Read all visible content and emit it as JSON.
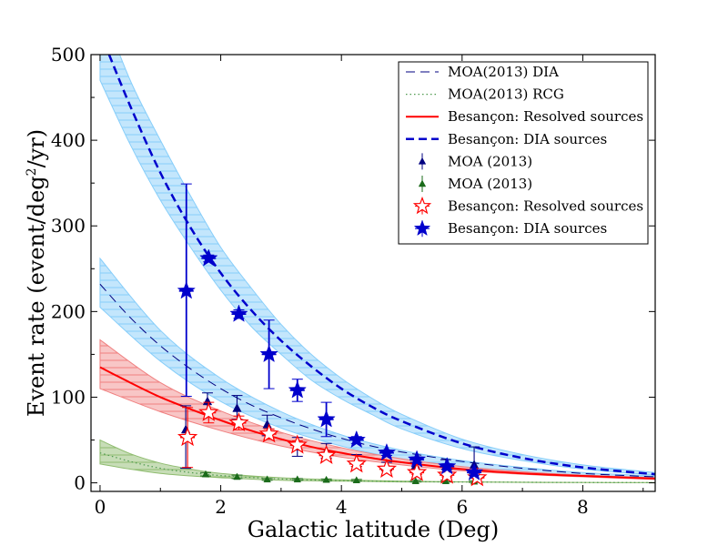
{
  "chart_data": {
    "type": "line",
    "xlabel": "Galactic latitude (Deg)",
    "ylabel_main": "Event rate (event/deg",
    "ylabel_sup": "2",
    "ylabel_end": "/yr)",
    "xlim": [
      -0.15,
      9.2
    ],
    "ylim": [
      -10,
      500
    ],
    "xticks": [
      0,
      2,
      4,
      6,
      8
    ],
    "yticks": [
      0,
      100,
      200,
      300,
      400,
      500
    ],
    "xtick_labels": [
      "0",
      "2",
      "4",
      "6",
      "8"
    ],
    "ytick_labels": [
      "0",
      "100",
      "200",
      "300",
      "400",
      "500"
    ],
    "legend_position": "top-right",
    "colors": {
      "blue_dark": "#0000cc",
      "navy": "#000080",
      "red": "#ff0000",
      "green_dark": "#1a6b1a",
      "green_dotted": "#4e9a4e",
      "band_blue": "#87cefa",
      "band_red": "#f08080",
      "band_green": "#8fbc6f"
    },
    "bands": [
      {
        "name": "moa_dia_band",
        "color": "#87cefa",
        "x": [
          0.0,
          1.0,
          2.0,
          3.0,
          4.0,
          5.0,
          6.0,
          7.0,
          8.0,
          9.2
        ],
        "lower": [
          205,
          142,
          95,
          64,
          43,
          28,
          19,
          13,
          9,
          6
        ],
        "upper": [
          262,
          178,
          122,
          83,
          56,
          38,
          26,
          18,
          12,
          8
        ]
      },
      {
        "name": "besancon_dia_band",
        "color": "#87cefa",
        "x": [
          0.0,
          0.5,
          1.0,
          1.5,
          2.0,
          2.5,
          3.0,
          3.5,
          4.0,
          4.5,
          5.0,
          6.0,
          7.0,
          8.0,
          9.2
        ],
        "lower": [
          470,
          395,
          330,
          275,
          225,
          183,
          150,
          120,
          98,
          80,
          63,
          40,
          26,
          16,
          9
        ],
        "upper": [
          560,
          470,
          400,
          335,
          275,
          228,
          185,
          150,
          122,
          99,
          80,
          51,
          33,
          21,
          12
        ]
      },
      {
        "name": "besancon_resolved_band",
        "color": "#f08080",
        "x": [
          0.0,
          1.0,
          2.0,
          3.0,
          4.0,
          5.0,
          6.0,
          7.0,
          8.0,
          9.2
        ],
        "lower": [
          110,
          83,
          61,
          43,
          30,
          21,
          14,
          10,
          7,
          4
        ],
        "upper": [
          167,
          117,
          84,
          59,
          41,
          28,
          19,
          13,
          9,
          6
        ]
      },
      {
        "name": "moa_rcg_band",
        "color": "#8fbc6f",
        "x": [
          0.0,
          0.5,
          1.0,
          1.5,
          2.0,
          3.0,
          4.0,
          5.0,
          6.0,
          7.0,
          8.0,
          9.2
        ],
        "lower": [
          22,
          16,
          11,
          8,
          6,
          3,
          2,
          1,
          1,
          0.5,
          0.3,
          0.2
        ],
        "upper": [
          50,
          34,
          23,
          16,
          11,
          6,
          3.5,
          2,
          1.2,
          0.8,
          0.5,
          0.3
        ]
      }
    ],
    "series": [
      {
        "name": "MOA(2013) DIA",
        "style": "dashed-thin",
        "color": "#000080",
        "x": [
          0.0,
          0.5,
          1.0,
          1.5,
          2.0,
          2.5,
          3.0,
          3.5,
          4.0,
          4.5,
          5.0,
          6.0,
          7.0,
          8.0,
          9.2
        ],
        "y": [
          232,
          193,
          160,
          133,
          110,
          91,
          76,
          63,
          52,
          43,
          36,
          25,
          17,
          11,
          7
        ]
      },
      {
        "name": "MOA(2013) RCG",
        "style": "dotted",
        "color": "#4e9a4e",
        "x": [
          0.0,
          0.5,
          1.0,
          1.5,
          2.0,
          3.0,
          4.0,
          5.0,
          6.0,
          7.0,
          8.0,
          9.2
        ],
        "y": [
          35,
          25,
          17,
          12,
          8.5,
          4.5,
          2.5,
          1.5,
          1,
          0.7,
          0.4,
          0.3
        ]
      },
      {
        "name": "Besançon: Resolved sources",
        "style": "solid",
        "color": "#ff0000",
        "x": [
          0.0,
          0.5,
          1.0,
          1.5,
          2.0,
          2.5,
          3.0,
          3.5,
          4.0,
          4.5,
          5.0,
          6.0,
          7.0,
          8.0,
          9.2
        ],
        "y": [
          135,
          117,
          100,
          86,
          73,
          61,
          51,
          42,
          35,
          29,
          24,
          16,
          11,
          8,
          5
        ]
      },
      {
        "name": "Besançon: DIA sources",
        "style": "dashed-thick",
        "color": "#0000cc",
        "x": [
          0.15,
          0.5,
          1.0,
          1.5,
          2.0,
          2.5,
          3.0,
          3.5,
          4.0,
          4.5,
          5.0,
          6.0,
          7.0,
          8.0,
          9.2
        ],
        "y": [
          500,
          440,
          362,
          298,
          245,
          202,
          166,
          136,
          110,
          89,
          72,
          46,
          29,
          18,
          10
        ]
      }
    ],
    "points": [
      {
        "name": "MOA (2013)",
        "marker": "triangle",
        "color": "#000080",
        "size": 5,
        "x": [
          1.42,
          1.78,
          2.27,
          2.77,
          3.27,
          3.75,
          4.25,
          4.75,
          5.23,
          5.73,
          6.2
        ],
        "y": [
          62,
          95,
          87,
          68,
          42,
          37,
          26,
          20,
          20,
          19,
          21
        ],
        "err_low": [
          45,
          10,
          13,
          13,
          11,
          8,
          7,
          5,
          5,
          8,
          10
        ],
        "err_high": [
          28,
          10,
          15,
          11,
          11,
          9,
          7,
          4,
          4,
          8,
          21
        ]
      },
      {
        "name": "MOA (2013)",
        "marker": "triangle",
        "color": "#1a6b1a",
        "size": 4,
        "x": [
          1.75,
          2.27,
          2.77,
          3.27,
          3.75,
          4.25,
          5.23,
          5.73,
          6.2
        ],
        "y": [
          10,
          7,
          4,
          4,
          3.5,
          3,
          2,
          2,
          1.5
        ],
        "err_low": [
          2,
          2,
          1,
          1,
          1,
          1,
          1,
          1,
          1
        ],
        "err_high": [
          2,
          2,
          1,
          1,
          1,
          1,
          1,
          1,
          1
        ]
      },
      {
        "name": "Besançon: Resolved sources",
        "marker": "star-open",
        "color": "#ff0000",
        "size": 10,
        "x": [
          1.45,
          1.8,
          2.3,
          2.8,
          3.27,
          3.75,
          4.25,
          4.75,
          5.25,
          5.75,
          6.25
        ],
        "y": [
          53,
          82,
          70,
          57,
          44,
          32,
          22,
          16,
          12,
          9,
          6
        ],
        "err_low": [
          35,
          12,
          8,
          6,
          5,
          4,
          3,
          2,
          2,
          2,
          1
        ],
        "err_high": [
          35,
          12,
          8,
          6,
          5,
          4,
          3,
          2,
          2,
          2,
          1
        ]
      },
      {
        "name": "Besançon: DIA sources",
        "marker": "star-filled",
        "color": "#0000cc",
        "size": 10,
        "x": [
          1.43,
          1.8,
          2.3,
          2.8,
          3.27,
          3.75,
          4.25,
          4.75,
          5.25,
          5.75,
          6.2
        ],
        "y": [
          224,
          262,
          197,
          150,
          108,
          74,
          50,
          35,
          27,
          19,
          12
        ],
        "err_low": [
          123,
          4,
          5,
          40,
          13,
          20,
          4,
          3,
          3,
          3,
          3
        ],
        "err_high": [
          125,
          4,
          5,
          40,
          13,
          20,
          4,
          3,
          3,
          3,
          3
        ]
      }
    ],
    "legend": [
      {
        "label": "MOA(2013) DIA",
        "kind": "line",
        "style": "dashed-thin",
        "color": "#000080"
      },
      {
        "label": "MOA(2013) RCG",
        "kind": "line",
        "style": "dotted",
        "color": "#4e9a4e"
      },
      {
        "label": "Besançon: Resolved sources",
        "kind": "line",
        "style": "solid",
        "color": "#ff0000"
      },
      {
        "label": "Besançon: DIA sources",
        "kind": "line",
        "style": "dashed-thick",
        "color": "#0000cc"
      },
      {
        "label": "MOA (2013)",
        "kind": "marker",
        "marker": "triangle",
        "color": "#000080"
      },
      {
        "label": "MOA (2013)",
        "kind": "marker",
        "marker": "triangle",
        "color": "#1a6b1a"
      },
      {
        "label": "Besançon: Resolved sources",
        "kind": "marker",
        "marker": "star-open",
        "color": "#ff0000"
      },
      {
        "label": "Besançon: DIA sources",
        "kind": "marker",
        "marker": "star-filled",
        "color": "#0000cc"
      }
    ]
  }
}
